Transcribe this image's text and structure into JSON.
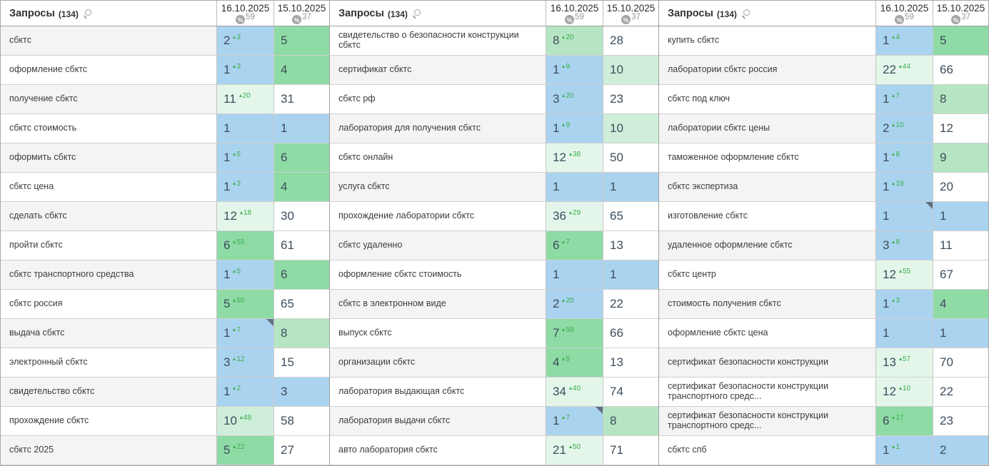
{
  "header": {
    "title": "Запросы",
    "count": "(134)",
    "columns": [
      {
        "date": "16.10.2025",
        "percent_icon": "percent-badge",
        "percent": "59"
      },
      {
        "date": "15.10.2025",
        "percent_icon": "percent-badge",
        "percent": "37"
      }
    ]
  },
  "colors": {
    "blue": "#a9d3ee",
    "green": "#8fdba6",
    "green8": "#b5e5c3",
    "green10": "#cfeeda",
    "pale": "#e4f5ea",
    "white": "#ffffff",
    "stripe": "#f4f4f4",
    "delta_green": "#3aaf4d",
    "corner_marker": "#5e7183"
  },
  "panes": [
    {
      "rows": [
        {
          "keyword": "сбктс",
          "cells": [
            {
              "value": "2",
              "delta": "3",
              "tone": "blue",
              "corner": false
            },
            {
              "value": "5",
              "delta": "",
              "tone": "green",
              "corner": false
            }
          ]
        },
        {
          "keyword": "оформление сбктс",
          "cells": [
            {
              "value": "1",
              "delta": "3",
              "tone": "blue",
              "corner": false
            },
            {
              "value": "4",
              "delta": "",
              "tone": "green",
              "corner": false
            }
          ]
        },
        {
          "keyword": "получение сбктс",
          "cells": [
            {
              "value": "11",
              "delta": "20",
              "tone": "pale",
              "corner": false
            },
            {
              "value": "31",
              "delta": "",
              "tone": "white",
              "corner": false
            }
          ]
        },
        {
          "keyword": "сбктс стоимость",
          "cells": [
            {
              "value": "1",
              "delta": "",
              "tone": "blue",
              "corner": false
            },
            {
              "value": "1",
              "delta": "",
              "tone": "blue",
              "corner": false
            }
          ]
        },
        {
          "keyword": "оформить сбктс",
          "cells": [
            {
              "value": "1",
              "delta": "5",
              "tone": "blue",
              "corner": false
            },
            {
              "value": "6",
              "delta": "",
              "tone": "green",
              "corner": false
            }
          ]
        },
        {
          "keyword": "сбктс цена",
          "cells": [
            {
              "value": "1",
              "delta": "3",
              "tone": "blue",
              "corner": false
            },
            {
              "value": "4",
              "delta": "",
              "tone": "green",
              "corner": false
            }
          ]
        },
        {
          "keyword": "сделать сбктс",
          "cells": [
            {
              "value": "12",
              "delta": "18",
              "tone": "pale",
              "corner": false
            },
            {
              "value": "30",
              "delta": "",
              "tone": "white",
              "corner": false
            }
          ]
        },
        {
          "keyword": "пройти сбктс",
          "cells": [
            {
              "value": "6",
              "delta": "55",
              "tone": "green",
              "corner": false
            },
            {
              "value": "61",
              "delta": "",
              "tone": "white",
              "corner": false
            }
          ]
        },
        {
          "keyword": "сбктс транспортного средства",
          "cells": [
            {
              "value": "1",
              "delta": "5",
              "tone": "blue",
              "corner": false
            },
            {
              "value": "6",
              "delta": "",
              "tone": "green",
              "corner": false
            }
          ]
        },
        {
          "keyword": "сбктс россия",
          "cells": [
            {
              "value": "5",
              "delta": "60",
              "tone": "green",
              "corner": false
            },
            {
              "value": "65",
              "delta": "",
              "tone": "white",
              "corner": false
            }
          ]
        },
        {
          "keyword": "выдача сбктс",
          "cells": [
            {
              "value": "1",
              "delta": "7",
              "tone": "blue",
              "corner": true
            },
            {
              "value": "8",
              "delta": "",
              "tone": "green8",
              "corner": false
            }
          ]
        },
        {
          "keyword": "электронный сбктс",
          "cells": [
            {
              "value": "3",
              "delta": "12",
              "tone": "blue",
              "corner": false
            },
            {
              "value": "15",
              "delta": "",
              "tone": "white",
              "corner": false
            }
          ]
        },
        {
          "keyword": "свидетельство сбктс",
          "cells": [
            {
              "value": "1",
              "delta": "2",
              "tone": "blue",
              "corner": false
            },
            {
              "value": "3",
              "delta": "",
              "tone": "blue",
              "corner": false
            }
          ]
        },
        {
          "keyword": "прохождение сбктс",
          "cells": [
            {
              "value": "10",
              "delta": "48",
              "tone": "green10",
              "corner": false
            },
            {
              "value": "58",
              "delta": "",
              "tone": "white",
              "corner": false
            }
          ]
        },
        {
          "keyword": "сбктс 2025",
          "cells": [
            {
              "value": "5",
              "delta": "22",
              "tone": "green",
              "corner": false
            },
            {
              "value": "27",
              "delta": "",
              "tone": "white",
              "corner": false
            }
          ]
        }
      ]
    },
    {
      "rows": [
        {
          "keyword": "свидетельство о безопасности конструкции сбктс",
          "cells": [
            {
              "value": "8",
              "delta": "20",
              "tone": "green8",
              "corner": false
            },
            {
              "value": "28",
              "delta": "",
              "tone": "white",
              "corner": false
            }
          ]
        },
        {
          "keyword": "сертификат сбктс",
          "cells": [
            {
              "value": "1",
              "delta": "9",
              "tone": "blue",
              "corner": false
            },
            {
              "value": "10",
              "delta": "",
              "tone": "green10",
              "corner": false
            }
          ]
        },
        {
          "keyword": "сбктс рф",
          "cells": [
            {
              "value": "3",
              "delta": "20",
              "tone": "blue",
              "corner": false
            },
            {
              "value": "23",
              "delta": "",
              "tone": "white",
              "corner": false
            }
          ]
        },
        {
          "keyword": "лаборатория для получения сбктс",
          "cells": [
            {
              "value": "1",
              "delta": "9",
              "tone": "blue",
              "corner": false
            },
            {
              "value": "10",
              "delta": "",
              "tone": "green10",
              "corner": false
            }
          ]
        },
        {
          "keyword": "сбктс онлайн",
          "cells": [
            {
              "value": "12",
              "delta": "38",
              "tone": "pale",
              "corner": false
            },
            {
              "value": "50",
              "delta": "",
              "tone": "white",
              "corner": false
            }
          ]
        },
        {
          "keyword": "услуга сбктс",
          "cells": [
            {
              "value": "1",
              "delta": "",
              "tone": "blue",
              "corner": false
            },
            {
              "value": "1",
              "delta": "",
              "tone": "blue",
              "corner": false
            }
          ]
        },
        {
          "keyword": "прохождение лаборатории сбктс",
          "cells": [
            {
              "value": "36",
              "delta": "29",
              "tone": "pale",
              "corner": false
            },
            {
              "value": "65",
              "delta": "",
              "tone": "white",
              "corner": false
            }
          ]
        },
        {
          "keyword": "сбктс удаленно",
          "cells": [
            {
              "value": "6",
              "delta": "7",
              "tone": "green",
              "corner": false
            },
            {
              "value": "13",
              "delta": "",
              "tone": "white",
              "corner": false
            }
          ]
        },
        {
          "keyword": "оформление сбктс стоимость",
          "cells": [
            {
              "value": "1",
              "delta": "",
              "tone": "blue",
              "corner": false
            },
            {
              "value": "1",
              "delta": "",
              "tone": "blue",
              "corner": false
            }
          ]
        },
        {
          "keyword": "сбктс в электронном виде",
          "cells": [
            {
              "value": "2",
              "delta": "20",
              "tone": "blue",
              "corner": false
            },
            {
              "value": "22",
              "delta": "",
              "tone": "white",
              "corner": false
            }
          ]
        },
        {
          "keyword": "выпуск сбктс",
          "cells": [
            {
              "value": "7",
              "delta": "59",
              "tone": "green",
              "corner": false
            },
            {
              "value": "66",
              "delta": "",
              "tone": "white",
              "corner": false
            }
          ]
        },
        {
          "keyword": "организации сбктс",
          "cells": [
            {
              "value": "4",
              "delta": "9",
              "tone": "green",
              "corner": false
            },
            {
              "value": "13",
              "delta": "",
              "tone": "white",
              "corner": false
            }
          ]
        },
        {
          "keyword": "лаборатория выдающая сбктс",
          "cells": [
            {
              "value": "34",
              "delta": "40",
              "tone": "pale",
              "corner": false
            },
            {
              "value": "74",
              "delta": "",
              "tone": "white",
              "corner": false
            }
          ]
        },
        {
          "keyword": "лаборатория выдачи сбктс",
          "cells": [
            {
              "value": "1",
              "delta": "7",
              "tone": "blue",
              "corner": true
            },
            {
              "value": "8",
              "delta": "",
              "tone": "green8",
              "corner": false
            }
          ]
        },
        {
          "keyword": "авто лаборатория сбктс",
          "cells": [
            {
              "value": "21",
              "delta": "50",
              "tone": "pale",
              "corner": false
            },
            {
              "value": "71",
              "delta": "",
              "tone": "white",
              "corner": false
            }
          ]
        }
      ]
    },
    {
      "rows": [
        {
          "keyword": "купить сбктс",
          "cells": [
            {
              "value": "1",
              "delta": "4",
              "tone": "blue",
              "corner": false
            },
            {
              "value": "5",
              "delta": "",
              "tone": "green",
              "corner": false
            }
          ]
        },
        {
          "keyword": "лаборатории сбктс россия",
          "cells": [
            {
              "value": "22",
              "delta": "44",
              "tone": "pale",
              "corner": false
            },
            {
              "value": "66",
              "delta": "",
              "tone": "white",
              "corner": false
            }
          ]
        },
        {
          "keyword": "сбктс под ключ",
          "cells": [
            {
              "value": "1",
              "delta": "7",
              "tone": "blue",
              "corner": false
            },
            {
              "value": "8",
              "delta": "",
              "tone": "green8",
              "corner": false
            }
          ]
        },
        {
          "keyword": "лаборатории сбктс цены",
          "cells": [
            {
              "value": "2",
              "delta": "10",
              "tone": "blue",
              "corner": false
            },
            {
              "value": "12",
              "delta": "",
              "tone": "white",
              "corner": false
            }
          ]
        },
        {
          "keyword": "таможенное оформление сбктс",
          "cells": [
            {
              "value": "1",
              "delta": "8",
              "tone": "blue",
              "corner": false
            },
            {
              "value": "9",
              "delta": "",
              "tone": "green8",
              "corner": false
            }
          ]
        },
        {
          "keyword": "сбктс экспертиза",
          "cells": [
            {
              "value": "1",
              "delta": "19",
              "tone": "blue",
              "corner": false
            },
            {
              "value": "20",
              "delta": "",
              "tone": "white",
              "corner": false
            }
          ]
        },
        {
          "keyword": "изготовление сбктс",
          "cells": [
            {
              "value": "1",
              "delta": "",
              "tone": "blue",
              "corner": true
            },
            {
              "value": "1",
              "delta": "",
              "tone": "blue",
              "corner": false
            }
          ]
        },
        {
          "keyword": "удаленное оформление сбктс",
          "cells": [
            {
              "value": "3",
              "delta": "8",
              "tone": "blue",
              "corner": false
            },
            {
              "value": "11",
              "delta": "",
              "tone": "white",
              "corner": false
            }
          ]
        },
        {
          "keyword": "сбктс центр",
          "cells": [
            {
              "value": "12",
              "delta": "55",
              "tone": "pale",
              "corner": false
            },
            {
              "value": "67",
              "delta": "",
              "tone": "white",
              "corner": false
            }
          ]
        },
        {
          "keyword": "стоимость получения сбктс",
          "cells": [
            {
              "value": "1",
              "delta": "3",
              "tone": "blue",
              "corner": false
            },
            {
              "value": "4",
              "delta": "",
              "tone": "green",
              "corner": false
            }
          ]
        },
        {
          "keyword": "оформление сбктс цена",
          "cells": [
            {
              "value": "1",
              "delta": "",
              "tone": "blue",
              "corner": false
            },
            {
              "value": "1",
              "delta": "",
              "tone": "blue",
              "corner": false
            }
          ]
        },
        {
          "keyword": "сертификат безопасности конструкции",
          "cells": [
            {
              "value": "13",
              "delta": "57",
              "tone": "pale",
              "corner": false
            },
            {
              "value": "70",
              "delta": "",
              "tone": "white",
              "corner": false
            }
          ]
        },
        {
          "keyword": "сертификат безопасности конструкции транспортного средс...",
          "cells": [
            {
              "value": "12",
              "delta": "10",
              "tone": "pale",
              "corner": false
            },
            {
              "value": "22",
              "delta": "",
              "tone": "white",
              "corner": false
            }
          ]
        },
        {
          "keyword": "сертификат безопасности конструкции транспортного средс...",
          "cells": [
            {
              "value": "6",
              "delta": "17",
              "tone": "green",
              "corner": false
            },
            {
              "value": "23",
              "delta": "",
              "tone": "white",
              "corner": false
            }
          ]
        },
        {
          "keyword": "сбктс спб",
          "cells": [
            {
              "value": "1",
              "delta": "1",
              "tone": "blue",
              "corner": false
            },
            {
              "value": "2",
              "delta": "",
              "tone": "blue",
              "corner": false
            }
          ]
        }
      ]
    }
  ]
}
